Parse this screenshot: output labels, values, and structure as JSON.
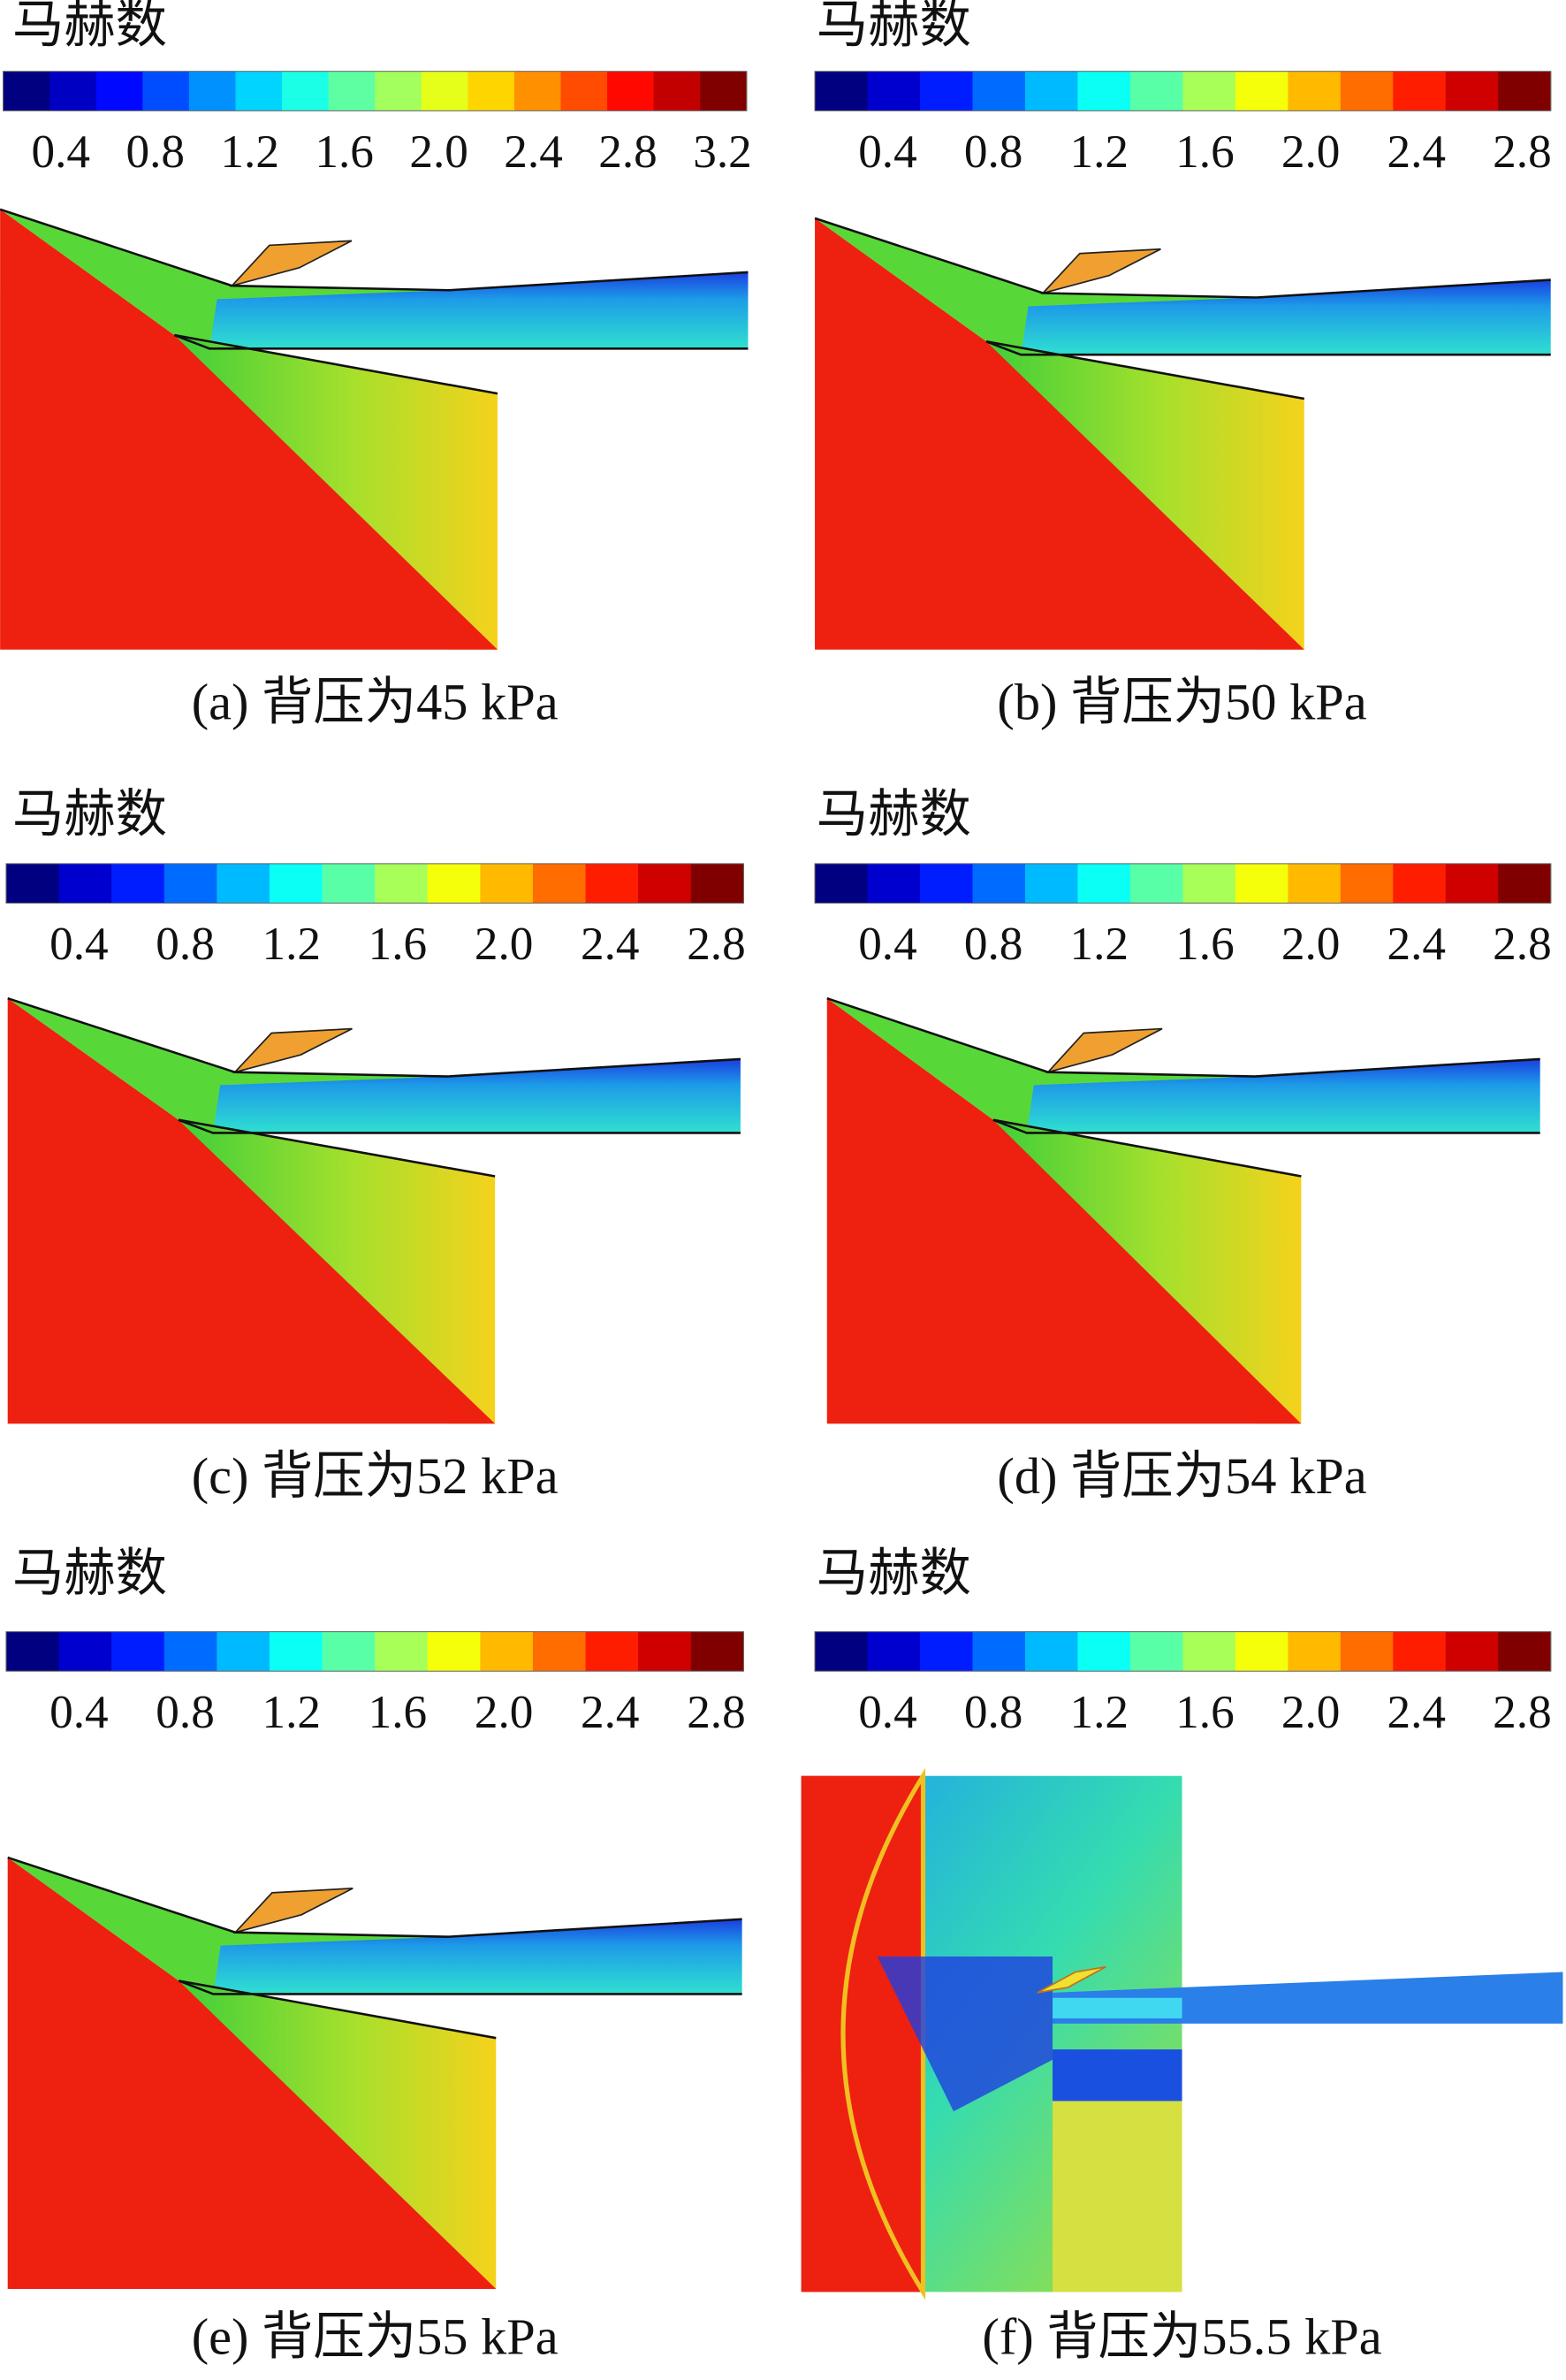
{
  "panels": [
    {
      "title": "马赫数",
      "colorbar_ticks": [
        "0.4",
        "0.8",
        "1.2",
        "1.6",
        "2.0",
        "2.4",
        "2.8",
        "3.2"
      ],
      "caption": "(a) 背压为45 kPa"
    },
    {
      "title": "马赫数",
      "colorbar_ticks": [
        "0.4",
        "0.8",
        "1.2",
        "1.6",
        "2.0",
        "2.4",
        "2.8"
      ],
      "caption": "(b) 背压为50 kPa"
    },
    {
      "title": "马赫数",
      "colorbar_ticks": [
        "0.4",
        "0.8",
        "1.2",
        "1.6",
        "2.0",
        "2.4",
        "2.8"
      ],
      "caption": "(c) 背压为52 kPa"
    },
    {
      "title": "马赫数",
      "colorbar_ticks": [
        "0.4",
        "0.8",
        "1.2",
        "1.6",
        "2.0",
        "2.4",
        "2.8"
      ],
      "caption": "(d) 背压为54 kPa"
    },
    {
      "title": "马赫数",
      "colorbar_ticks": [
        "0.4",
        "0.8",
        "1.2",
        "1.6",
        "2.0",
        "2.4",
        "2.8"
      ],
      "caption": "(e) 背压为55 kPa"
    },
    {
      "title": "马赫数",
      "colorbar_ticks": [
        "0.4",
        "0.8",
        "1.2",
        "1.6",
        "2.0",
        "2.4",
        "2.8"
      ],
      "caption": "(f) 背压为55.5 kPa"
    }
  ]
}
